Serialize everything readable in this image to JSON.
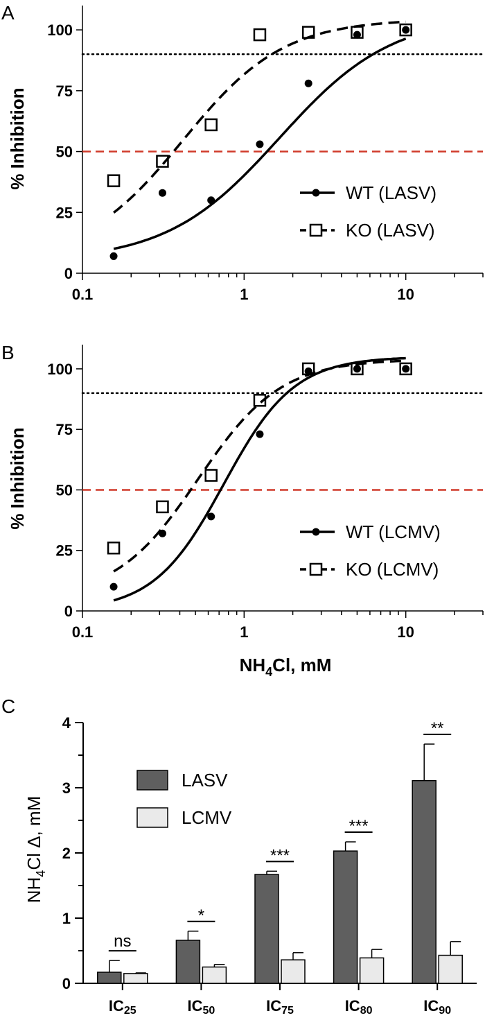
{
  "chart_data": [
    {
      "panel": "A",
      "type": "line",
      "ylabel": "% Inhibition",
      "xlabel": "",
      "xscale": "log",
      "xlim": [
        0.1,
        30
      ],
      "ylim": [
        0,
        110
      ],
      "xticks": [
        0.1,
        1,
        10
      ],
      "xtick_labels": [
        "0.1",
        "1",
        "10"
      ],
      "yticks": [
        0,
        25,
        50,
        75,
        100
      ],
      "ytick_labels": [
        "0",
        "25",
        "50",
        "75",
        "100"
      ],
      "reference_lines": [
        {
          "y": 90,
          "style": "dotted",
          "color": "#000000"
        },
        {
          "y": 50,
          "style": "dashed",
          "color": "#d03a2a"
        }
      ],
      "legend_position": "bottom-right",
      "series": [
        {
          "name": "WT (LASV)",
          "marker": "filled-circle",
          "line": "solid",
          "x": [
            0.156,
            0.3125,
            0.625,
            1.25,
            2.5,
            5,
            10
          ],
          "y": [
            7,
            33,
            30,
            53,
            78,
            98,
            100
          ],
          "fit": {
            "bottom": 5,
            "top": 106,
            "ic50": 1.65,
            "hill": 1.25
          }
        },
        {
          "name": "KO (LASV)",
          "marker": "open-square",
          "line": "dashed",
          "x": [
            0.156,
            0.3125,
            0.625,
            1.25,
            2.5,
            5,
            10
          ],
          "y": [
            38,
            46,
            61,
            98,
            99,
            99,
            100
          ],
          "fit": {
            "bottom": 5,
            "top": 104.5,
            "ic50": 0.42,
            "hill": 1.4
          }
        }
      ]
    },
    {
      "panel": "B",
      "type": "line",
      "ylabel": "% Inhibition",
      "xlabel": "NH4Cl, mM",
      "xscale": "log",
      "xlim": [
        0.1,
        30
      ],
      "ylim": [
        0,
        110
      ],
      "xticks": [
        0.1,
        1,
        10
      ],
      "xtick_labels": [
        "0.1",
        "1",
        "10"
      ],
      "yticks": [
        0,
        25,
        50,
        75,
        100
      ],
      "ytick_labels": [
        "0",
        "25",
        "50",
        "75",
        "100"
      ],
      "reference_lines": [
        {
          "y": 90,
          "style": "dotted",
          "color": "#000000"
        },
        {
          "y": 50,
          "style": "dashed",
          "color": "#d03a2a"
        }
      ],
      "legend_position": "bottom-right",
      "series": [
        {
          "name": "WT (LCMV)",
          "marker": "filled-circle",
          "line": "solid",
          "x": [
            0.156,
            0.3125,
            0.625,
            1.25,
            2.5,
            5,
            10
          ],
          "y": [
            10,
            32,
            39,
            73,
            99,
            100,
            100
          ],
          "fit": {
            "bottom": 0,
            "top": 105,
            "ic50": 0.75,
            "hill": 2.0
          }
        },
        {
          "name": "KO (LCMV)",
          "marker": "open-square",
          "line": "dashed",
          "x": [
            0.156,
            0.3125,
            0.625,
            1.25,
            2.5,
            5,
            10
          ],
          "y": [
            26,
            43,
            56,
            87,
            100,
            100,
            100
          ],
          "fit": {
            "bottom": 5,
            "top": 104,
            "ic50": 0.52,
            "hill": 1.7
          }
        }
      ]
    },
    {
      "panel": "C",
      "type": "bar",
      "ylabel": "NH4Cl Δ, mM",
      "xlabel": "",
      "ylim": [
        0,
        4
      ],
      "yticks": [
        0,
        1,
        2,
        3,
        4
      ],
      "ytick_labels": [
        "0",
        "1",
        "2",
        "3",
        "4"
      ],
      "categories": [
        {
          "base": "IC",
          "sub": "25"
        },
        {
          "base": "IC",
          "sub": "50"
        },
        {
          "base": "IC",
          "sub": "75"
        },
        {
          "base": "IC",
          "sub": "80"
        },
        {
          "base": "IC",
          "sub": "90"
        }
      ],
      "legend_position": "top-left",
      "series": [
        {
          "name": "LASV",
          "color": "#5f5f5f",
          "values": [
            0.17,
            0.66,
            1.67,
            2.03,
            3.11
          ],
          "errors": [
            0.18,
            0.14,
            0.05,
            0.14,
            0.56
          ]
        },
        {
          "name": "LCMV",
          "color": "#eaeaea",
          "values": [
            0.15,
            0.25,
            0.36,
            0.39,
            0.43
          ],
          "errors": [
            0.01,
            0.04,
            0.11,
            0.13,
            0.21
          ]
        }
      ],
      "significance": [
        "ns",
        "*",
        "***",
        "***",
        "**"
      ]
    }
  ],
  "labels": {
    "panel_a": "A",
    "panel_b": "B",
    "panel_c": "C",
    "ylabel_ab": "% Inhibition",
    "xlabel_b_main": "NH",
    "xlabel_b_sub": "4",
    "xlabel_b_rest": "Cl, mM",
    "ylabel_c_main": "NH",
    "ylabel_c_sub": "4",
    "ylabel_c_rest": "Cl Δ, mM",
    "legend_a_wt": "WT (LASV)",
    "legend_a_ko": "KO (LASV)",
    "legend_b_wt": "WT (LCMV)",
    "legend_b_ko": "KO (LCMV)",
    "legend_c_lasv": "LASV",
    "legend_c_lcmv": "LCMV"
  },
  "colors": {
    "red_ref": "#d03a2a",
    "lasv_bar": "#5f5f5f",
    "lcmv_bar": "#eaeaea"
  }
}
